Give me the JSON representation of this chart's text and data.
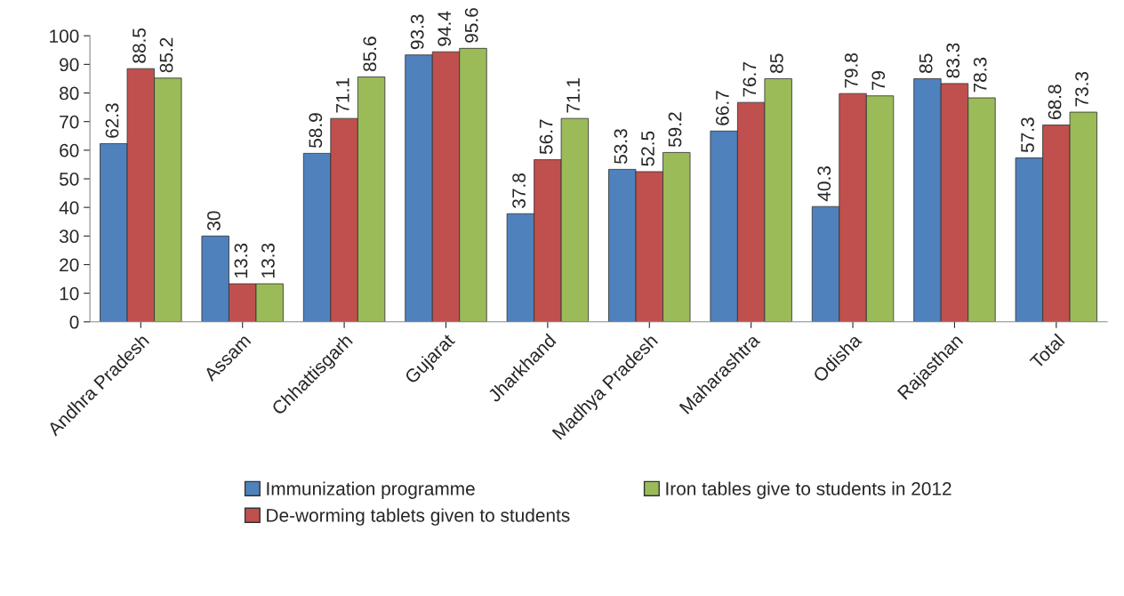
{
  "chart_data": {
    "type": "bar",
    "categories": [
      "Andhra Pradesh",
      "Assam",
      "Chhattisgarh",
      "Gujarat",
      "Jharkhand",
      "Madhya Pradesh",
      "Maharashtra",
      "Odisha",
      "Rajasthan",
      "Total"
    ],
    "series": [
      {
        "name": "Immunization programme",
        "color": "#4f81bd",
        "values": [
          62.3,
          30,
          58.9,
          93.3,
          37.8,
          53.3,
          66.7,
          40.3,
          85,
          57.3
        ]
      },
      {
        "name": "De-worming tablets given to students",
        "color": "#c0504d",
        "values": [
          88.5,
          13.3,
          71.1,
          94.4,
          56.7,
          52.5,
          76.7,
          79.8,
          83.3,
          68.8
        ]
      },
      {
        "name": "Iron tables give to students in 2012",
        "color": "#9bbb59",
        "values": [
          85.2,
          13.3,
          85.6,
          95.6,
          71.1,
          59.2,
          85,
          79,
          78.3,
          73.3
        ]
      }
    ],
    "ylim": [
      0,
      100
    ],
    "yticks": [
      0,
      10,
      20,
      30,
      40,
      50,
      60,
      70,
      80,
      90,
      100
    ],
    "grid": false,
    "legend": "bottom",
    "data_labels": true
  }
}
